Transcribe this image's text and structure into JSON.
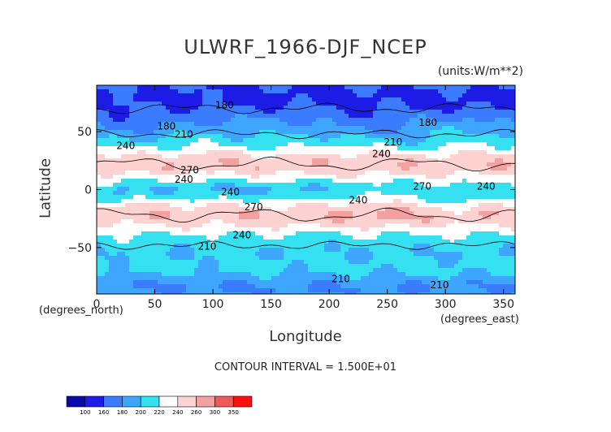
{
  "chart_data": {
    "type": "contour",
    "title": "ULWRF_1966-DJF_NCEP",
    "units": "(units:W/m**2)",
    "xlabel": "Longitude",
    "ylabel": "Latitude",
    "xnote": "(degrees_east)",
    "ynote": "(degrees_north)",
    "xlim": [
      0,
      360
    ],
    "ylim": [
      -90,
      90
    ],
    "xticks": [
      0,
      50,
      100,
      150,
      200,
      250,
      300,
      350
    ],
    "yticks": [
      -50,
      0,
      50
    ],
    "contour_interval_text": "CONTOUR INTERVAL = 1.500E+01",
    "colorbar": {
      "levels": [
        100,
        160,
        180,
        200,
        220,
        240,
        260,
        300,
        350
      ],
      "colors": [
        "#0a0aa8",
        "#1c1ce6",
        "#3b7bff",
        "#3fa6ff",
        "#35e0f0",
        "#ffffff",
        "#ffd2d2",
        "#f2a0a0",
        "#ee5a5a",
        "#ff1010"
      ]
    },
    "contour_labels": [
      {
        "lon": 110,
        "lat": 70,
        "text": "180"
      },
      {
        "lon": 60,
        "lat": 52,
        "text": "180"
      },
      {
        "lon": 285,
        "lat": 55,
        "text": "180"
      },
      {
        "lon": 75,
        "lat": 45,
        "text": "210"
      },
      {
        "lon": 255,
        "lat": 38,
        "text": "210"
      },
      {
        "lon": 25,
        "lat": 35,
        "text": "240"
      },
      {
        "lon": 245,
        "lat": 28,
        "text": "240"
      },
      {
        "lon": 80,
        "lat": 14,
        "text": "270"
      },
      {
        "lon": 75,
        "lat": 6,
        "text": "240"
      },
      {
        "lon": 115,
        "lat": -5,
        "text": "240"
      },
      {
        "lon": 135,
        "lat": -18,
        "text": "270"
      },
      {
        "lon": 225,
        "lat": -12,
        "text": "240"
      },
      {
        "lon": 280,
        "lat": 0,
        "text": "270"
      },
      {
        "lon": 335,
        "lat": 0,
        "text": "240"
      },
      {
        "lon": 125,
        "lat": -42,
        "text": "240"
      },
      {
        "lon": 95,
        "lat": -52,
        "text": "210"
      },
      {
        "lon": 210,
        "lat": -80,
        "text": "210"
      },
      {
        "lon": 295,
        "lat": -85,
        "text": "210"
      }
    ]
  }
}
